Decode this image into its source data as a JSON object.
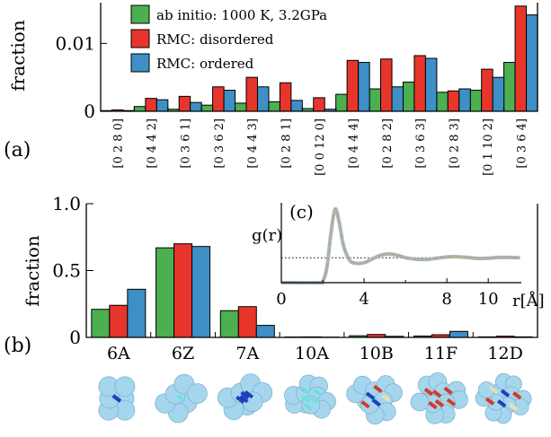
{
  "colors": {
    "green": "#4caf50",
    "red": "#e8352b",
    "blue": "#3d8fc6",
    "inset_line": "#9bb8cf",
    "inset_dash": "#e0a33a",
    "cluster": "#a6d6ee",
    "bond_blue": "#1f3fbf",
    "bond_red": "#d23b2b",
    "bond_cyan": "#6fe0e0",
    "bond_cream": "#e8dfb0"
  },
  "chart_data": [
    {
      "type": "bar",
      "panel_label": "(a)",
      "ylabel": "fraction",
      "ylim": [
        0,
        0.016
      ],
      "yticks": [
        0,
        0.01
      ],
      "ytick_labels": [
        "0",
        "0.01"
      ],
      "categories": [
        "[0 2 8 0]",
        "[0 4 4 2]",
        "[0 3 6 1]",
        "[0 3 6 2]",
        "[0 4 4 3]",
        "[0 2 8 1]",
        "[0 0 12 0]",
        "[0 4 4 4]",
        "[0 2 8 2]",
        "[0 3 6 3]",
        "[0 2 8 3]",
        "[0 1 10 2]",
        "[0 3 6 4]"
      ],
      "legend": {
        "placement": "top-left",
        "entries": [
          "ab initio: 1000 K, 3.2GPa",
          "RMC: disordered",
          "RMC: ordered"
        ]
      },
      "series": [
        {
          "name": "ab initio: 1000 K, 3.2GPa",
          "color": "green",
          "values": [
            0.0001,
            0.0007,
            0.0003,
            0.0009,
            0.0012,
            0.0014,
            0.0004,
            0.0025,
            0.0033,
            0.0043,
            0.0028,
            0.0031,
            0.0072
          ]
        },
        {
          "name": "RMC: disordered",
          "color": "red",
          "values": [
            0.0002,
            0.0019,
            0.0022,
            0.0036,
            0.005,
            0.0042,
            0.002,
            0.0075,
            0.0077,
            0.0082,
            0.003,
            0.0062,
            0.0155
          ]
        },
        {
          "name": "RMC: ordered",
          "color": "blue",
          "values": [
            0.0001,
            0.0017,
            0.0013,
            0.0031,
            0.0036,
            0.0016,
            0.0003,
            0.0072,
            0.0036,
            0.0078,
            0.0033,
            0.005,
            0.0142
          ]
        }
      ]
    },
    {
      "type": "bar",
      "panel_label": "(b)",
      "ylabel": "fraction",
      "ylim": [
        0,
        1.0
      ],
      "yticks": [
        0,
        0.5,
        1.0
      ],
      "ytick_labels": [
        "0",
        "0.5",
        "1.0"
      ],
      "categories": [
        "6A",
        "6Z",
        "7A",
        "10A",
        "10B",
        "11F",
        "12D"
      ],
      "series": [
        {
          "name": "ab initio: 1000 K, 3.2GPa",
          "color": "green",
          "values": [
            0.21,
            0.67,
            0.2,
            0.003,
            0.012,
            0.01,
            0.004
          ]
        },
        {
          "name": "RMC: disordered",
          "color": "red",
          "values": [
            0.24,
            0.7,
            0.23,
            0.004,
            0.022,
            0.02,
            0.009
          ]
        },
        {
          "name": "RMC: ordered",
          "color": "blue",
          "values": [
            0.36,
            0.68,
            0.09,
            0.002,
            0.008,
            0.045,
            0.004
          ]
        }
      ]
    },
    {
      "type": "line",
      "panel_label": "(c)",
      "ylabel": "g(r)",
      "xlabel": "r[Å]",
      "xlim": [
        0,
        11.6
      ],
      "ylim": [
        0,
        3.2
      ],
      "xticks": [
        0,
        4,
        8,
        10
      ],
      "xtick_labels": [
        "0",
        "4",
        "8",
        "10"
      ],
      "reference_line_y": 1,
      "x": [
        0,
        1.8,
        2.0,
        2.2,
        2.4,
        2.6,
        2.8,
        3.0,
        3.3,
        3.6,
        4.0,
        4.4,
        4.8,
        5.2,
        5.6,
        6.0,
        6.5,
        7.0,
        7.5,
        8.0,
        8.5,
        9.0,
        9.5,
        10.0,
        10.5,
        11.0,
        11.5
      ],
      "series": [
        {
          "values": [
            0,
            0,
            0.05,
            0.6,
            2.0,
            2.95,
            2.4,
            1.5,
            0.9,
            0.78,
            0.8,
            0.95,
            1.1,
            1.15,
            1.1,
            1.0,
            0.94,
            0.93,
            0.98,
            1.03,
            1.04,
            1.01,
            0.97,
            0.98,
            1.01,
            1.01,
            1.0
          ]
        }
      ]
    }
  ]
}
